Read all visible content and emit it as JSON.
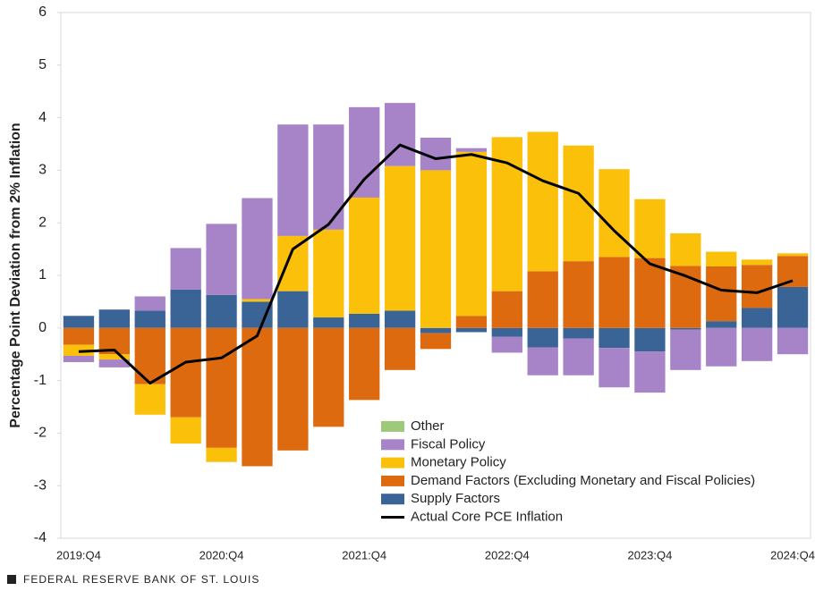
{
  "chart_data": {
    "type": "bar",
    "stacked": true,
    "y_label": "Percentage Point Deviation from 2% Inflation",
    "source": "FEDERAL RESERVE BANK OF ST. LOUIS",
    "categories": [
      "2019:Q4",
      null,
      null,
      null,
      "2020:Q4",
      null,
      null,
      null,
      "2021:Q4",
      null,
      null,
      null,
      "2022:Q4",
      null,
      null,
      null,
      "2023:Q4",
      null,
      null,
      null,
      "2024:Q4"
    ],
    "ylim": [
      -4,
      6
    ],
    "yticks": [
      -4,
      -3,
      -2,
      -1,
      0,
      1,
      2,
      3,
      4,
      5,
      6
    ],
    "series": [
      {
        "name": "Other",
        "color": "#9dc97b",
        "values": [
          0,
          0,
          0,
          0,
          0,
          0,
          0,
          0,
          0,
          0,
          0,
          0,
          0,
          0,
          0,
          0,
          0,
          0,
          0,
          0,
          0
        ]
      },
      {
        "name": "Fiscal Policy",
        "color": "#a783c8",
        "values": [
          -0.12,
          -0.15,
          0.27,
          0.79,
          1.35,
          1.92,
          2.12,
          2.0,
          1.72,
          1.2,
          0.62,
          0.07,
          -0.3,
          -0.53,
          -0.7,
          -0.75,
          -0.78,
          -0.77,
          -0.73,
          -0.63,
          -0.5
        ]
      },
      {
        "name": "Monetary Policy",
        "color": "#fbc00a",
        "values": [
          -0.21,
          -0.1,
          -0.58,
          -0.5,
          -0.27,
          0.05,
          1.05,
          1.67,
          2.21,
          2.75,
          3.0,
          3.12,
          2.93,
          2.65,
          2.2,
          1.67,
          1.12,
          0.62,
          0.28,
          0.1,
          0.05
        ]
      },
      {
        "name": "Demand Factors (Excluding Monetary and Fiscal Policies)",
        "color": "#de6a10",
        "values": [
          -0.32,
          -0.5,
          -1.07,
          -1.7,
          -2.28,
          -2.63,
          -2.33,
          -1.88,
          -1.37,
          -0.8,
          -0.3,
          0.23,
          0.7,
          1.08,
          1.27,
          1.35,
          1.33,
          1.18,
          1.04,
          0.82,
          0.59
        ]
      },
      {
        "name": "Supply Factors",
        "color": "#3a6496",
        "values": [
          0.23,
          0.35,
          0.33,
          0.73,
          0.63,
          0.5,
          0.7,
          0.2,
          0.27,
          0.33,
          -0.1,
          -0.08,
          -0.17,
          -0.37,
          -0.2,
          -0.38,
          -0.45,
          -0.03,
          0.13,
          0.38,
          0.78
        ]
      },
      {
        "name": "Actual Core PCE Inflation",
        "type": "line",
        "color": "#000000",
        "values": [
          -0.45,
          -0.42,
          -1.05,
          -0.65,
          -0.57,
          -0.15,
          1.5,
          1.97,
          2.83,
          3.48,
          3.22,
          3.3,
          3.14,
          2.8,
          2.56,
          1.85,
          1.22,
          0.99,
          0.72,
          0.67,
          0.9
        ]
      }
    ]
  }
}
